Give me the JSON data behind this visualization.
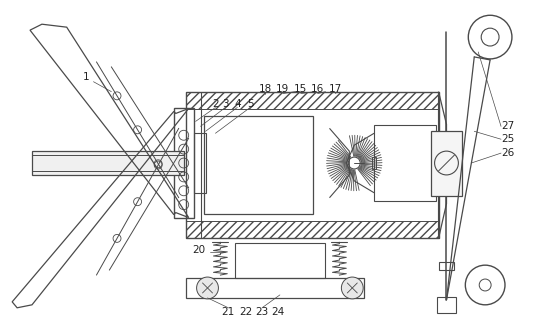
{
  "figure_width": 5.36,
  "figure_height": 3.31,
  "dpi": 100,
  "bg_color": "#ffffff",
  "line_color": "#4a4a4a",
  "line_width": 0.8
}
